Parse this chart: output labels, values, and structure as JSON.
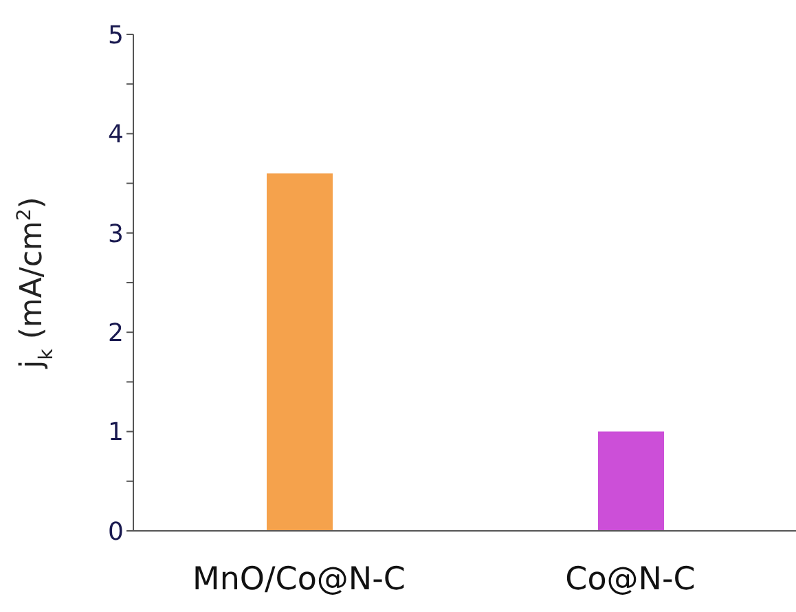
{
  "chart_data": {
    "type": "bar",
    "ylabel": "j$_{k}$ (mA/cm$^{2}$)",
    "categories": [
      "MnO/Co@N-C",
      "Co@N-C"
    ],
    "values": [
      3.6,
      1.0
    ],
    "colors": [
      "#f5a24c",
      "#cc4fd8"
    ],
    "ylim": [
      0,
      5
    ],
    "yticks": [
      0,
      {
        "value": 0.5,
        "label": null
      },
      1,
      {
        "value": 1.5,
        "label": null
      },
      2,
      {
        "value": 2.5,
        "label": null
      },
      3,
      {
        "value": 3.5,
        "label": null
      },
      4,
      {
        "value": 4.5,
        "label": null
      },
      5
    ],
    "grid": false,
    "legend": false
  }
}
